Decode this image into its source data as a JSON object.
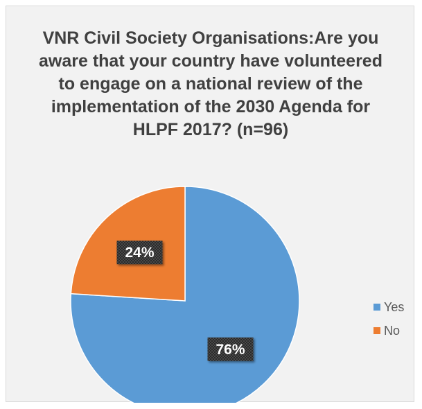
{
  "chart_data": {
    "type": "pie",
    "title": "VNR Civil Society Organisations:Are you aware that your country have volunteered to engage on a national review of the implementation of the 2030 Agenda for HLPF 2017?  (n=96)",
    "categories": [
      "Yes",
      "No"
    ],
    "values": [
      76,
      24
    ],
    "data_labels": [
      "76%",
      "24%"
    ],
    "colors": [
      "#5b9bd5",
      "#ed7d31"
    ],
    "legend_position": "right",
    "start_angle_deg": 0,
    "direction": "clockwise"
  }
}
